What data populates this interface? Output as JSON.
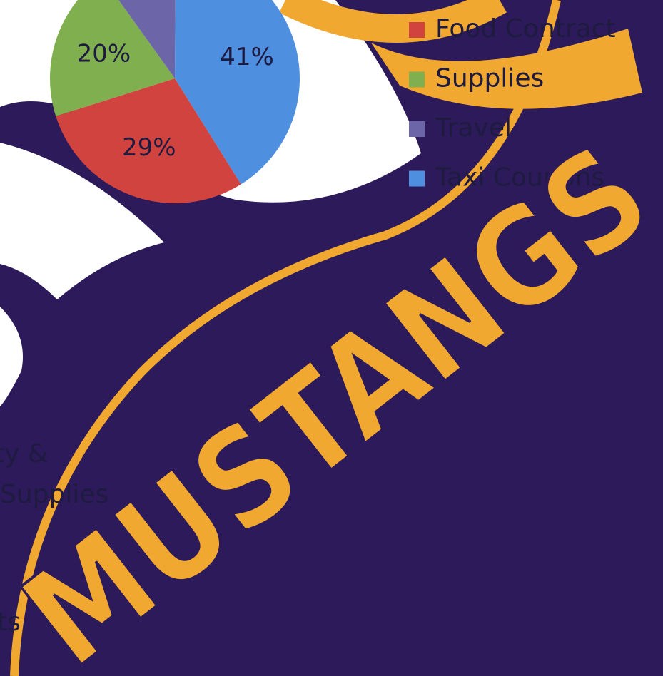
{
  "chart_data": {
    "type": "pie",
    "categories": [
      "Food Contract",
      "Supplies",
      "Travel",
      "Taxi Coupons"
    ],
    "values": [
      29,
      20,
      10,
      41
    ],
    "value_labels": [
      "29%",
      "20%",
      null,
      "41%"
    ],
    "colors": [
      "#d0433f",
      "#7faf4e",
      "#6c66a8",
      "#4f8fe0"
    ],
    "legend": "right"
  },
  "background": {
    "logo_text": "MUSTANGS",
    "cut_off_labels": [
      "ity &",
      "Supplies",
      "ts"
    ]
  }
}
